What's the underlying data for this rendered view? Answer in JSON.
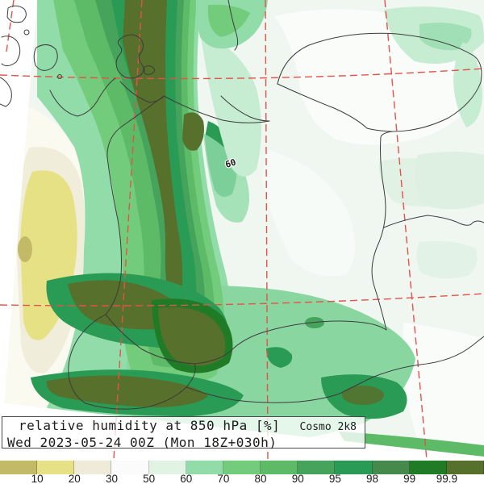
{
  "title": {
    "product": "relative humidity at 850 hPa [%]",
    "model": "Cosmo 2k8",
    "valid_time": "Wed 2023-05-24 00Z (Mon 18Z+030h)"
  },
  "map": {
    "contour_label": "60",
    "description": "filled contour map of relative humidity at 850 hPa over central/eastern Europe, rotated model grid, red dashed lat-lon graticule, black country borders"
  },
  "colorbar": {
    "tick_labels": [
      "10",
      "20",
      "30",
      "50",
      "60",
      "70",
      "80",
      "90",
      "95",
      "98",
      "99",
      "99.9"
    ],
    "segment_colors": [
      "#c3ba68",
      "#e7e186",
      "#eeecd9",
      "#fbfbfb",
      "#e1f3e3",
      "#92dcaa",
      "#73cc7b",
      "#5dbb68",
      "#46a35b",
      "#2a9b54",
      "#45894c",
      "#207b26",
      "#57702c"
    ]
  },
  "palette": {
    "rh_lt10": "#c3ba68",
    "rh_10_20": "#e7e186",
    "rh_20_30": "#eeecd9",
    "rh_30_50": "#fbfbfb",
    "rh_50_60": "#e1f3e3",
    "rh_60_70": "#92dcaa",
    "rh_70_80": "#73cc7b",
    "rh_80_90": "#5dbb68",
    "rh_90_95": "#46a35b",
    "rh_95_98": "#2a9b54",
    "rh_98_99": "#45894c",
    "rh_99_999": "#207b26",
    "rh_gt999": "#57702c",
    "field_base": "#eff7f0",
    "field_white": "#fafcfa",
    "field_mint_light": "#c6ecd2",
    "field_pale": "#ddf0e1",
    "dry_white": "#fbfaf0",
    "dry_cream": "#f0eedb",
    "graticule": "#e4524a",
    "border": "#3c3c3c"
  }
}
